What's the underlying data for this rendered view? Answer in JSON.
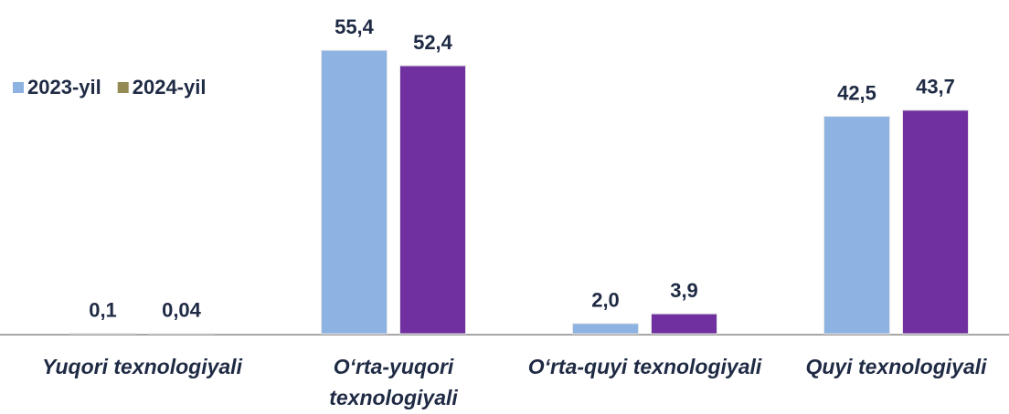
{
  "chart_data": {
    "type": "bar",
    "categories": [
      "Yuqori texnologiyali",
      "O‘rta-yuqori texnologiyali",
      "O‘rta-quyi texnologiyali",
      "Quyi texnologiyali"
    ],
    "series": [
      {
        "name": "2023-yil",
        "color": "#8db3e2",
        "values": [
          0.1,
          55.4,
          2.0,
          42.5
        ],
        "value_labels": [
          "0,1",
          "55,4",
          "2,0",
          "42,5"
        ]
      },
      {
        "name": "2024-yil",
        "color": "#948a54",
        "colors": [
          "#948a54",
          "#7030a0",
          "#7030a0",
          "#7030a0"
        ],
        "values": [
          0.04,
          52.4,
          3.9,
          43.7
        ],
        "value_labels": [
          "0,04",
          "52,4",
          "3,9",
          "43,7"
        ]
      }
    ],
    "ylim": [
      0,
      60
    ],
    "legend": "top-left"
  }
}
